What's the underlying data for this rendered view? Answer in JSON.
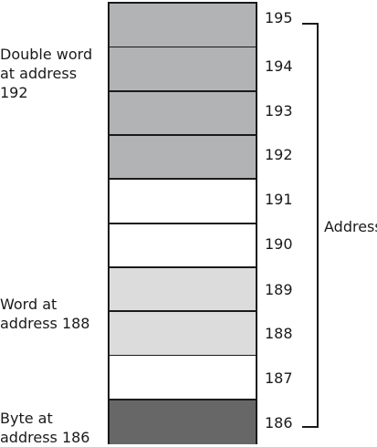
{
  "diagram": {
    "cells": [
      {
        "address": "195",
        "fill": "#b2b3b5"
      },
      {
        "address": "194",
        "fill": "#b2b3b5"
      },
      {
        "address": "193",
        "fill": "#b2b3b5"
      },
      {
        "address": "192",
        "fill": "#b2b3b5"
      },
      {
        "address": "191",
        "fill": "#ffffff"
      },
      {
        "address": "190",
        "fill": "#ffffff"
      },
      {
        "address": "189",
        "fill": "#dcdcdd"
      },
      {
        "address": "188",
        "fill": "#dcdcdd"
      },
      {
        "address": "187",
        "fill": "#ffffff"
      },
      {
        "address": "186",
        "fill": "#676767"
      }
    ],
    "group_labels": {
      "double_word": "Double word\nat address\n192",
      "word": "Word at\naddress 188",
      "byte": "Byte at\naddress 186"
    },
    "axis_label": "Address"
  }
}
